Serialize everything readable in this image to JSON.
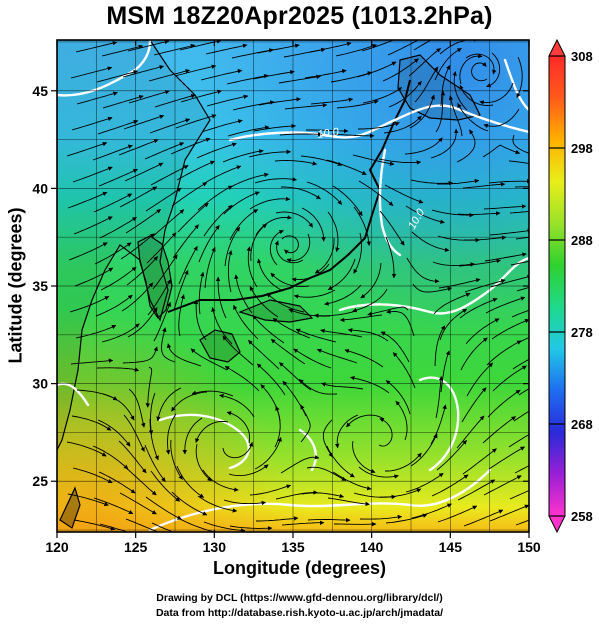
{
  "title": "MSM 18Z20Apr2025 (1013.2hPa)",
  "axes": {
    "xlabel": "Longitude (degrees)",
    "ylabel": "Latitude  (degrees)",
    "x_ticks": [
      "120",
      "125",
      "130",
      "135",
      "140",
      "145",
      "150"
    ],
    "y_ticks": [
      "25",
      "30",
      "35",
      "40",
      "45"
    ],
    "xlim": [
      120,
      150
    ],
    "ylim": [
      22.4,
      47.6
    ]
  },
  "colorbar": {
    "ticks": [
      "258",
      "268",
      "278",
      "288",
      "298",
      "308"
    ],
    "range": [
      258,
      308
    ],
    "colors": [
      "#ff33cc",
      "#9a1fd6",
      "#2a2ad8",
      "#1e6ef0",
      "#22c8e6",
      "#20d88a",
      "#2fd12f",
      "#9ae22a",
      "#e8ee1a",
      "#ffb000",
      "#ff5a1a",
      "#ff2a2a"
    ]
  },
  "credits": {
    "line1": "Drawing by DCL (https://www.gfd-dennou.org/library/dcl/)",
    "line2": "Data from http://database.rish.kyoto-u.ac.jp/arch/jmadata/"
  },
  "contour_labels": [
    "10.0",
    "10.0"
  ],
  "colors": {
    "cold": "#44b8ef",
    "cool": "#20d0c4",
    "mild": "#34d54a",
    "warm": "#b8e226",
    "hot": "#f6ba16",
    "land": "#000000",
    "contour": "#ffffff"
  }
}
